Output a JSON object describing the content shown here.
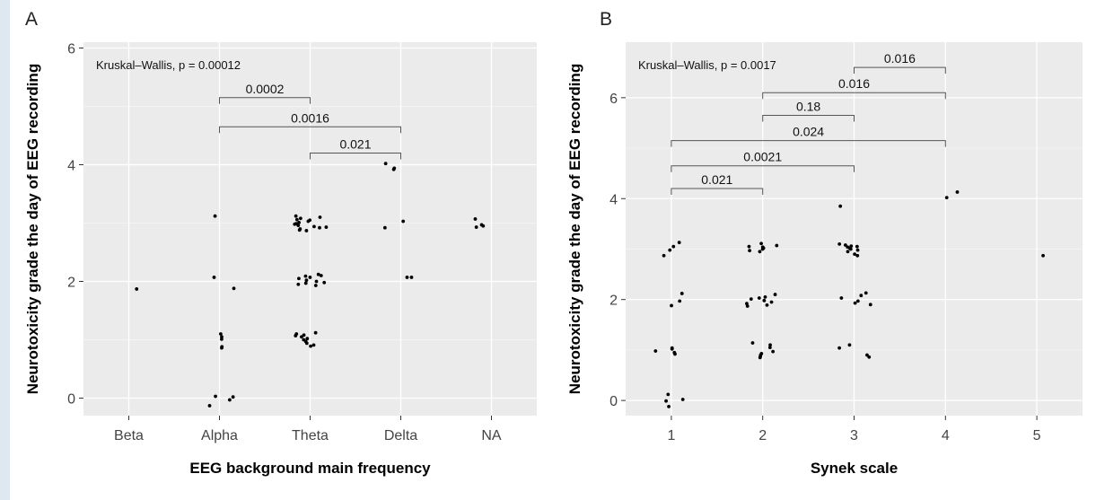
{
  "chart_data": [
    {
      "panel_label": "A",
      "type": "scatter",
      "xlabel": "EEG background main frequency",
      "ylabel": "Neurotoxicity grade the day of EEG recording",
      "categories": [
        "Beta",
        "Alpha",
        "Theta",
        "Delta",
        "NA"
      ],
      "ylim": [
        -0.3,
        6.1
      ],
      "yticks": [
        "0",
        "2",
        "4",
        "6"
      ],
      "annotation": "Kruskal–Wallis, p = 0.00012",
      "grid": true,
      "points": [
        {
          "x": "Beta",
          "y": 1.87
        },
        {
          "x": "Alpha",
          "y": 3.12
        },
        {
          "x": "Alpha",
          "y": 2.07
        },
        {
          "x": "Alpha",
          "y": 1.88
        },
        {
          "x": "Alpha",
          "y": 1.1
        },
        {
          "x": "Alpha",
          "y": 1.05
        },
        {
          "x": "Alpha",
          "y": 1.01
        },
        {
          "x": "Alpha",
          "y": 0.88
        },
        {
          "x": "Alpha",
          "y": 0.86
        },
        {
          "x": "Alpha",
          "y": 0.03
        },
        {
          "x": "Alpha",
          "y": 0.02
        },
        {
          "x": "Alpha",
          "y": -0.03
        },
        {
          "x": "Alpha",
          "y": -0.13
        },
        {
          "x": "Theta",
          "y": 3.12
        },
        {
          "x": "Theta",
          "y": 3.08
        },
        {
          "x": "Theta",
          "y": 3.05
        },
        {
          "x": "Theta",
          "y": 3.03
        },
        {
          "x": "Theta",
          "y": 3.01
        },
        {
          "x": "Theta",
          "y": 2.98
        },
        {
          "x": "Theta",
          "y": 2.96
        },
        {
          "x": "Theta",
          "y": 2.94
        },
        {
          "x": "Theta",
          "y": 2.92
        },
        {
          "x": "Theta",
          "y": 2.9
        },
        {
          "x": "Theta",
          "y": 2.88
        },
        {
          "x": "Theta",
          "y": 3.06
        },
        {
          "x": "Theta",
          "y": 2.93
        },
        {
          "x": "Theta",
          "y": 2.99
        },
        {
          "x": "Theta",
          "y": 3.1
        },
        {
          "x": "Theta",
          "y": 2.87
        },
        {
          "x": "Theta",
          "y": 2.12
        },
        {
          "x": "Theta",
          "y": 2.1
        },
        {
          "x": "Theta",
          "y": 2.07
        },
        {
          "x": "Theta",
          "y": 2.05
        },
        {
          "x": "Theta",
          "y": 2.02
        },
        {
          "x": "Theta",
          "y": 2.0
        },
        {
          "x": "Theta",
          "y": 1.98
        },
        {
          "x": "Theta",
          "y": 1.95
        },
        {
          "x": "Theta",
          "y": 1.93
        },
        {
          "x": "Theta",
          "y": 2.09
        },
        {
          "x": "Theta",
          "y": 1.97
        },
        {
          "x": "Theta",
          "y": 1.12
        },
        {
          "x": "Theta",
          "y": 1.1
        },
        {
          "x": "Theta",
          "y": 1.07
        },
        {
          "x": "Theta",
          "y": 1.05
        },
        {
          "x": "Theta",
          "y": 1.02
        },
        {
          "x": "Theta",
          "y": 1.0
        },
        {
          "x": "Theta",
          "y": 0.97
        },
        {
          "x": "Theta",
          "y": 0.94
        },
        {
          "x": "Theta",
          "y": 0.91
        },
        {
          "x": "Theta",
          "y": 1.08
        },
        {
          "x": "Theta",
          "y": 0.89
        },
        {
          "x": "Delta",
          "y": 4.02
        },
        {
          "x": "Delta",
          "y": 3.94
        },
        {
          "x": "Delta",
          "y": 3.92
        },
        {
          "x": "Delta",
          "y": 3.03
        },
        {
          "x": "Delta",
          "y": 2.92
        },
        {
          "x": "Delta",
          "y": 2.07
        },
        {
          "x": "Delta",
          "y": 2.07
        },
        {
          "x": "NA",
          "y": 2.93
        },
        {
          "x": "NA",
          "y": 2.95
        },
        {
          "x": "NA",
          "y": 2.97
        },
        {
          "x": "NA",
          "y": 3.07
        }
      ],
      "comparisons": [
        {
          "from": "Alpha",
          "to": "Theta",
          "label": "0.0002",
          "y": 5.15
        },
        {
          "from": "Alpha",
          "to": "Delta",
          "label": "0.0016",
          "y": 4.65
        },
        {
          "from": "Theta",
          "to": "Delta",
          "label": "0.021",
          "y": 4.2
        }
      ]
    },
    {
      "panel_label": "B",
      "type": "scatter",
      "xlabel": "Synek scale",
      "ylabel": "Neurotoxicity grade the day of EEG recording",
      "categories": [
        "1",
        "2",
        "3",
        "4",
        "5"
      ],
      "ylim": [
        -0.3,
        7.1
      ],
      "yticks": [
        "0",
        "2",
        "4",
        "6"
      ],
      "annotation": "Kruskal–Wallis, p = 0.0017",
      "grid": true,
      "points": [
        {
          "x": "1",
          "y": 3.13
        },
        {
          "x": "1",
          "y": 3.05
        },
        {
          "x": "1",
          "y": 2.98
        },
        {
          "x": "1",
          "y": 2.87
        },
        {
          "x": "1",
          "y": 2.12
        },
        {
          "x": "1",
          "y": 1.97
        },
        {
          "x": "1",
          "y": 1.88
        },
        {
          "x": "1",
          "y": 1.04
        },
        {
          "x": "1",
          "y": 1.02
        },
        {
          "x": "1",
          "y": 0.98
        },
        {
          "x": "1",
          "y": 0.95
        },
        {
          "x": "1",
          "y": 0.92
        },
        {
          "x": "1",
          "y": 0.12
        },
        {
          "x": "1",
          "y": 0.02
        },
        {
          "x": "1",
          "y": -0.01
        },
        {
          "x": "1",
          "y": -0.12
        },
        {
          "x": "2",
          "y": 3.11
        },
        {
          "x": "2",
          "y": 3.07
        },
        {
          "x": "2",
          "y": 3.04
        },
        {
          "x": "2",
          "y": 3.02
        },
        {
          "x": "2",
          "y": 3.0
        },
        {
          "x": "2",
          "y": 2.97
        },
        {
          "x": "2",
          "y": 3.05
        },
        {
          "x": "2",
          "y": 2.95
        },
        {
          "x": "2",
          "y": 2.1
        },
        {
          "x": "2",
          "y": 2.05
        },
        {
          "x": "2",
          "y": 2.01
        },
        {
          "x": "2",
          "y": 1.98
        },
        {
          "x": "2",
          "y": 1.95
        },
        {
          "x": "2",
          "y": 1.92
        },
        {
          "x": "2",
          "y": 1.89
        },
        {
          "x": "2",
          "y": 1.87
        },
        {
          "x": "2",
          "y": 2.03
        },
        {
          "x": "2",
          "y": 1.14
        },
        {
          "x": "2",
          "y": 1.1
        },
        {
          "x": "2",
          "y": 1.05
        },
        {
          "x": "2",
          "y": 0.97
        },
        {
          "x": "2",
          "y": 0.93
        },
        {
          "x": "2",
          "y": 0.9
        },
        {
          "x": "2",
          "y": 0.87
        },
        {
          "x": "2",
          "y": 0.85
        },
        {
          "x": "3",
          "y": 3.85
        },
        {
          "x": "3",
          "y": 3.1
        },
        {
          "x": "3",
          "y": 3.08
        },
        {
          "x": "3",
          "y": 3.06
        },
        {
          "x": "3",
          "y": 3.04
        },
        {
          "x": "3",
          "y": 3.02
        },
        {
          "x": "3",
          "y": 3.0
        },
        {
          "x": "3",
          "y": 2.98
        },
        {
          "x": "3",
          "y": 2.95
        },
        {
          "x": "3",
          "y": 2.9
        },
        {
          "x": "3",
          "y": 2.87
        },
        {
          "x": "3",
          "y": 3.05
        },
        {
          "x": "3",
          "y": 2.13
        },
        {
          "x": "3",
          "y": 2.08
        },
        {
          "x": "3",
          "y": 2.03
        },
        {
          "x": "3",
          "y": 1.97
        },
        {
          "x": "3",
          "y": 1.93
        },
        {
          "x": "3",
          "y": 1.9
        },
        {
          "x": "3",
          "y": 1.1
        },
        {
          "x": "3",
          "y": 1.04
        },
        {
          "x": "3",
          "y": 0.9
        },
        {
          "x": "3",
          "y": 0.86
        },
        {
          "x": "4",
          "y": 4.13
        },
        {
          "x": "4",
          "y": 4.02
        },
        {
          "x": "5",
          "y": 2.87
        }
      ],
      "comparisons": [
        {
          "from": "3",
          "to": "4",
          "label": "0.016",
          "y": 6.6
        },
        {
          "from": "2",
          "to": "4",
          "label": "0.016",
          "y": 6.1
        },
        {
          "from": "2",
          "to": "3",
          "label": "0.18",
          "y": 5.65
        },
        {
          "from": "1",
          "to": "4",
          "label": "0.024",
          "y": 5.15
        },
        {
          "from": "1",
          "to": "3",
          "label": "0.0021",
          "y": 4.65
        },
        {
          "from": "1",
          "to": "2",
          "label": "0.021",
          "y": 4.2
        }
      ]
    }
  ]
}
